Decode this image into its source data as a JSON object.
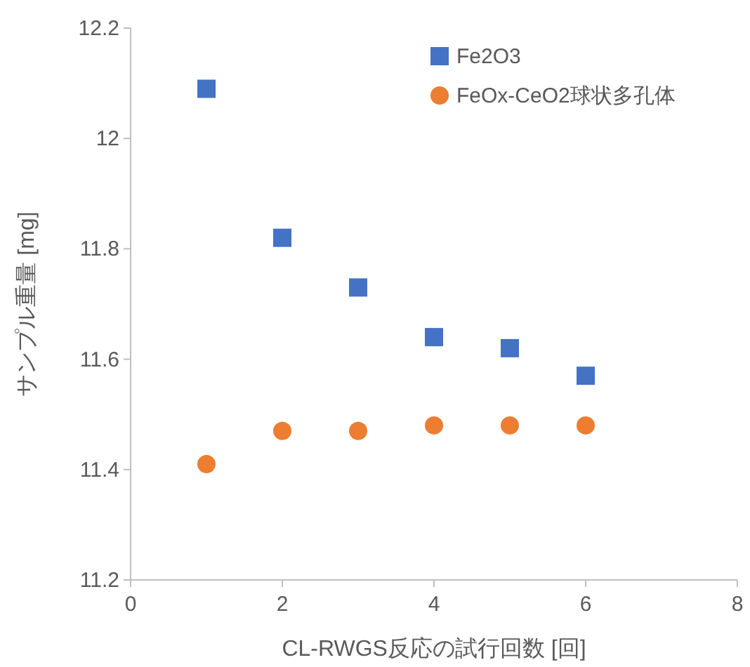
{
  "chart_data": {
    "type": "scatter",
    "xlabel": "CL-RWGS反応の試行回数 [回]",
    "ylabel": "サンプル重量 [mg]",
    "x": [
      1,
      2,
      3,
      4,
      5,
      6
    ],
    "series": [
      {
        "name": "Fe2O3",
        "color": "#4472c4",
        "marker": "square",
        "values": [
          12.09,
          11.82,
          11.73,
          11.64,
          11.62,
          11.57
        ]
      },
      {
        "name": "FeOx-CeO2球状多孔体",
        "color": "#ed7d31",
        "marker": "circle",
        "values": [
          11.41,
          11.47,
          11.47,
          11.48,
          11.48,
          11.48
        ]
      }
    ],
    "xlim": [
      0,
      8
    ],
    "xticks": [
      0,
      2,
      4,
      6,
      8
    ],
    "ylim": [
      11.2,
      12.2
    ],
    "yticks": [
      11.2,
      11.4,
      11.6,
      11.8,
      {
        "value": 12,
        "label": "12"
      },
      12.2
    ],
    "grid": false,
    "legend": "top right"
  }
}
